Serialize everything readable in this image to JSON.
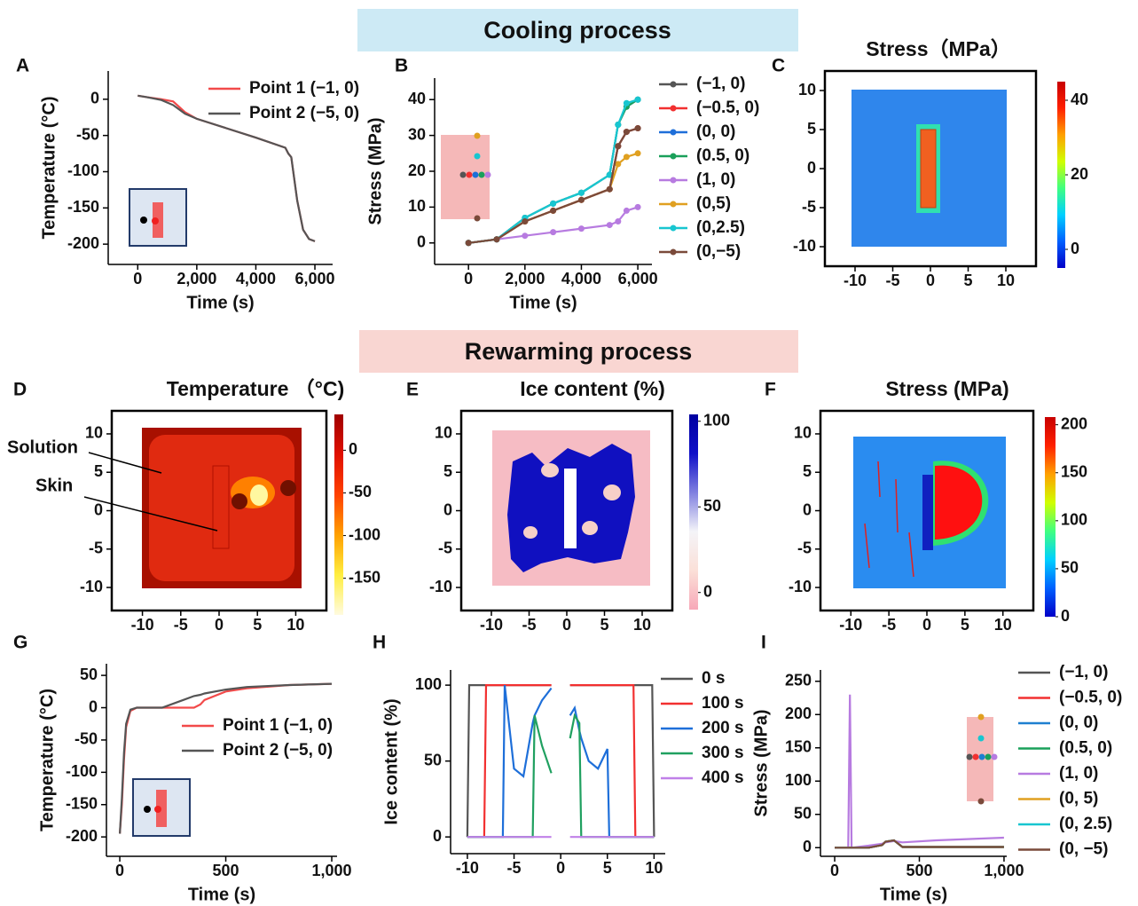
{
  "sections": [
    "Cooling process",
    "Rewarming process"
  ],
  "chart_data": [
    {
      "type": "line",
      "panel": "A",
      "xlabel": "Time (s)",
      "ylabel": "Temperature (°C)",
      "xlim": [
        -1000,
        6600
      ],
      "ylim": [
        -228,
        39
      ],
      "xticks": [
        0,
        {
          "value": 2000,
          "label": "2,000"
        },
        {
          "value": 4000,
          "label": "4,000"
        },
        {
          "value": 6000,
          "label": "6,000"
        }
      ],
      "yticks": [
        0,
        -50,
        -100,
        -150,
        -200
      ],
      "x": [
        0,
        300,
        800,
        1200,
        1600,
        2000,
        3000,
        4000,
        5000,
        5100,
        5200,
        5400,
        5600,
        5800,
        6000
      ],
      "series": [
        {
          "name": "Point 1 (−1, 0)",
          "color": "#f24a4a",
          "values": [
            5,
            3,
            0,
            -3,
            -18,
            -27,
            -40,
            -53,
            -67,
            -75,
            -80,
            -140,
            -180,
            -193,
            -196
          ]
        },
        {
          "name": "Point 2 (−5, 0)",
          "color": "#555555",
          "values": [
            5,
            3,
            -1,
            -8,
            -20,
            -27,
            -40,
            -53,
            -67,
            -75,
            -80,
            -140,
            -180,
            -193,
            -196
          ]
        }
      ]
    },
    {
      "type": "line",
      "panel": "B",
      "xlabel": "Time (s)",
      "ylabel": "Stress (MPa)",
      "marker": "circle",
      "xlim": [
        -1200,
        6500
      ],
      "ylim": [
        -6,
        46
      ],
      "xticks": [
        0,
        {
          "value": 2000,
          "label": "2,000"
        },
        {
          "value": 4000,
          "label": "4,000"
        },
        {
          "value": 6000,
          "label": "6,000"
        }
      ],
      "yticks": [
        0,
        10,
        20,
        30,
        40
      ],
      "x": [
        0,
        1000,
        2000,
        3000,
        4000,
        5000,
        5300,
        5600,
        6000
      ],
      "series": [
        {
          "name": "(−1, 0)",
          "color": "#555555",
          "values": [
            0,
            1,
            6,
            9,
            12,
            15,
            27,
            31,
            32
          ]
        },
        {
          "name": "(−0.5, 0)",
          "color": "#f23030",
          "values": [
            0,
            1,
            6,
            9,
            12,
            15,
            27,
            31,
            32
          ]
        },
        {
          "name": "(0, 0)",
          "color": "#1e6fd9",
          "values": [
            0,
            1,
            7,
            11,
            14,
            19,
            33,
            38,
            40
          ]
        },
        {
          "name": "(0.5, 0)",
          "color": "#1aa05a",
          "values": [
            0,
            1,
            7,
            11,
            14,
            19,
            33,
            38,
            40
          ]
        },
        {
          "name": "(1, 0)",
          "color": "#b77be0",
          "values": [
            0,
            1,
            2,
            3,
            4,
            5,
            6,
            9,
            10
          ]
        },
        {
          "name": "(0,5)",
          "color": "#e0a020",
          "values": [
            0,
            1,
            6,
            9,
            12,
            15,
            22,
            24,
            25
          ]
        },
        {
          "name": "(0,2.5)",
          "color": "#18c6d0",
          "values": [
            0,
            1,
            7,
            11,
            14,
            19,
            33,
            39,
            40
          ]
        },
        {
          "name": "(0,−5)",
          "color": "#7a4a3a",
          "values": [
            0,
            1,
            6,
            9,
            12,
            15,
            27,
            31,
            32
          ]
        }
      ]
    },
    {
      "type": "heatmap",
      "panel": "C",
      "title": "Stress（MPa）",
      "xlim": [
        -14,
        14
      ],
      "ylim": [
        -12.5,
        12.5
      ],
      "xticks": [
        -10,
        -5,
        0,
        5,
        10
      ],
      "yticks": [
        -10,
        -5,
        0,
        5,
        10
      ],
      "clim": [
        -5,
        45
      ],
      "cticks": [
        0,
        20,
        40
      ],
      "colorscale": [
        "#0000c8",
        "#0060ff",
        "#00d0ff",
        "#40ff80",
        "#d0ff00",
        "#ffa000",
        "#ff2000",
        "#c80000"
      ]
    },
    {
      "type": "heatmap",
      "panel": "D",
      "title": "Temperature （°C)",
      "annotations": [
        "Solution",
        "Skin"
      ],
      "xlim": [
        -14,
        14
      ],
      "ylim": [
        -13,
        13
      ],
      "xticks": [
        -10,
        -5,
        0,
        5,
        10
      ],
      "yticks": [
        -10,
        -5,
        0,
        5,
        10
      ],
      "clim": [
        -193,
        42
      ],
      "cticks": [
        0,
        -50,
        -100,
        -150
      ],
      "colorscale": [
        "#fffbe0",
        "#ffee40",
        "#ffa000",
        "#ff4000",
        "#e01000",
        "#a00000"
      ]
    },
    {
      "type": "heatmap",
      "panel": "E",
      "title": "Ice content (%)",
      "xlim": [
        -14,
        14
      ],
      "ylim": [
        -13,
        13
      ],
      "xticks": [
        -10,
        -5,
        0,
        5,
        10
      ],
      "yticks": [
        -10,
        -5,
        0,
        5,
        10
      ],
      "clim": [
        -10,
        104
      ],
      "cticks": [
        0,
        50,
        100
      ],
      "colorscale": [
        "#f7a8b8",
        "#fbe0d8",
        "#f4f4f8",
        "#8080e0",
        "#1010c8",
        "#0000a0"
      ]
    },
    {
      "type": "heatmap",
      "panel": "F",
      "title": "Stress (MPa)",
      "xlim": [
        -14,
        14
      ],
      "ylim": [
        -13,
        13
      ],
      "xticks": [
        -10,
        -5,
        0,
        5,
        10
      ],
      "yticks": [
        -10,
        -5,
        0,
        5,
        10
      ],
      "clim": [
        0,
        208
      ],
      "cticks": [
        0,
        50,
        100,
        150,
        200
      ],
      "colorscale": [
        "#0000c8",
        "#0060ff",
        "#00d0ff",
        "#40ff80",
        "#d0ff00",
        "#ffa000",
        "#ff2000",
        "#c80000"
      ]
    },
    {
      "type": "line",
      "panel": "G",
      "xlabel": "Time (s)",
      "ylabel": "Temperature (°C)",
      "xlim": [
        -63,
        1025
      ],
      "ylim": [
        -230,
        68
      ],
      "xticks": [
        0,
        500,
        {
          "value": 1000,
          "label": "1,000"
        }
      ],
      "yticks": [
        50,
        0,
        -50,
        -100,
        -150,
        -200
      ],
      "x": [
        0,
        10,
        20,
        30,
        50,
        80,
        120,
        200,
        300,
        350,
        380,
        400,
        500,
        600,
        800,
        1000
      ],
      "series": [
        {
          "name": "Point 1 (−1, 0)",
          "color": "#f24a4a",
          "values": [
            -195,
            -150,
            -80,
            -30,
            -5,
            0,
            0,
            0,
            0,
            0,
            5,
            12,
            25,
            30,
            35,
            37
          ]
        },
        {
          "name": "Point 2 (−5, 0)",
          "color": "#555555",
          "values": [
            -195,
            -140,
            -70,
            -25,
            -3,
            0,
            0,
            0,
            12,
            18,
            20,
            22,
            28,
            32,
            35,
            37
          ]
        }
      ]
    },
    {
      "type": "line",
      "panel": "H",
      "ylabel": "Ice content (%)",
      "xlim": [
        -11.8,
        11.2
      ],
      "ylim": [
        -11,
        110
      ],
      "xticks": [
        -10,
        -5,
        0,
        5,
        10
      ],
      "yticks": [
        0,
        50,
        100
      ],
      "x": [
        -10,
        -9.8,
        -8.2,
        -8,
        -6.2,
        -6,
        -5,
        -4,
        -3,
        -2.8,
        -2,
        -1,
        0,
        1,
        1.5,
        2,
        2.2,
        3,
        4,
        5,
        5.2,
        7.8,
        8,
        9.8,
        10
      ],
      "series": [
        {
          "name": "0 s",
          "color": "#555555",
          "values": [
            0,
            100,
            100,
            100,
            100,
            100,
            100,
            100,
            100,
            100,
            100,
            100,
            null,
            100,
            100,
            100,
            100,
            100,
            100,
            100,
            100,
            100,
            100,
            100,
            0
          ]
        },
        {
          "name": "100 s",
          "color": "#f23030",
          "values": [
            0,
            0,
            0,
            100,
            100,
            100,
            100,
            100,
            100,
            100,
            100,
            100,
            null,
            100,
            100,
            100,
            100,
            100,
            100,
            100,
            100,
            100,
            0,
            0,
            0
          ]
        },
        {
          "name": "200 s",
          "color": "#1e6fd9",
          "values": [
            0,
            0,
            0,
            0,
            0,
            100,
            45,
            40,
            75,
            80,
            90,
            98,
            null,
            80,
            85,
            70,
            65,
            50,
            45,
            58,
            0,
            0,
            0,
            0,
            0
          ]
        },
        {
          "name": "300 s",
          "color": "#20a060",
          "values": [
            0,
            0,
            0,
            0,
            0,
            0,
            0,
            0,
            0,
            80,
            60,
            42,
            null,
            65,
            80,
            75,
            0,
            0,
            0,
            0,
            0,
            0,
            0,
            0,
            0
          ]
        },
        {
          "name": "400 s",
          "color": "#c080e8",
          "values": [
            0,
            0,
            0,
            0,
            0,
            0,
            0,
            0,
            0,
            0,
            0,
            0,
            null,
            0,
            0,
            0,
            0,
            0,
            0,
            0,
            0,
            0,
            0,
            0,
            0
          ]
        }
      ]
    },
    {
      "type": "line",
      "panel": "I",
      "xlabel": "Time (s)",
      "ylabel": "Stress (MPa)",
      "xlim": [
        -84,
        1016
      ],
      "ylim": [
        -13,
        267
      ],
      "xticks": [
        0,
        500,
        {
          "value": 1000,
          "label": "1,000"
        }
      ],
      "yticks": [
        0,
        50,
        100,
        150,
        200,
        250
      ],
      "x": [
        0,
        80,
        90,
        100,
        200,
        280,
        300,
        350,
        400,
        600,
        800,
        1000
      ],
      "series": [
        {
          "name": "(−1, 0)",
          "color": "#555555",
          "values": [
            0,
            0,
            0,
            0,
            0,
            4,
            9,
            11,
            1,
            1,
            1,
            1
          ]
        },
        {
          "name": "(−0.5, 0)",
          "color": "#f23030",
          "values": [
            0,
            0,
            0,
            0,
            0,
            4,
            9,
            11,
            1,
            1,
            1,
            1
          ]
        },
        {
          "name": "(0, 0)",
          "color": "#1e7fd0",
          "values": [
            0,
            0,
            0,
            0,
            0,
            4,
            9,
            11,
            1,
            1,
            1,
            1
          ]
        },
        {
          "name": "(0.5, 0)",
          "color": "#1aa05a",
          "values": [
            0,
            0,
            0,
            0,
            0,
            4,
            9,
            11,
            1,
            1,
            1,
            1
          ]
        },
        {
          "name": "(1, 0)",
          "color": "#b77be0",
          "values": [
            0,
            0,
            230,
            0,
            3,
            6,
            8,
            10,
            8,
            11,
            13,
            15
          ]
        },
        {
          "name": "(0, 5)",
          "color": "#e0a020",
          "values": [
            0,
            0,
            0,
            0,
            0,
            4,
            9,
            11,
            1,
            1,
            1,
            1
          ]
        },
        {
          "name": "(0, 2.5)",
          "color": "#18c6d0",
          "values": [
            0,
            0,
            0,
            0,
            0,
            4,
            9,
            11,
            1,
            1,
            1,
            1
          ]
        },
        {
          "name": "(0, −5)",
          "color": "#7a4a3a",
          "values": [
            0,
            0,
            0,
            0,
            0,
            4,
            9,
            11,
            1,
            1,
            1,
            1
          ]
        }
      ]
    }
  ]
}
